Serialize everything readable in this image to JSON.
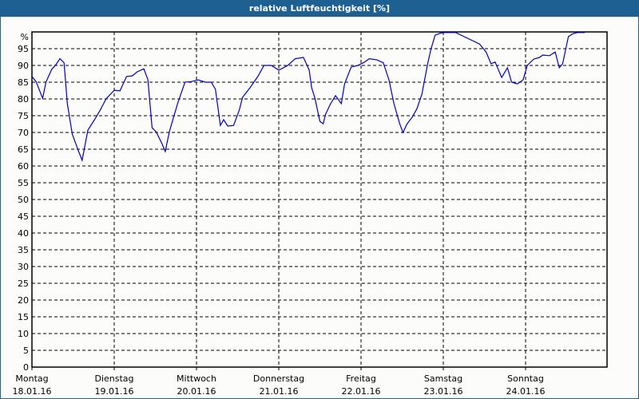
{
  "window": {
    "title": "relative Luftfeuchtigkeit [%]"
  },
  "colors": {
    "titlebar": "#1d6091",
    "title_text": "#ffffff",
    "background": "#fcfdfa",
    "line": "#0000c0",
    "grid": "#000000"
  },
  "chart_data": {
    "type": "line",
    "title": "relative Luftfeuchtigkeit [%]",
    "xlabel": "",
    "ylabel": "%",
    "ylim": [
      0,
      100
    ],
    "grid": true,
    "legend": null,
    "y_ticks": [
      0,
      5,
      10,
      15,
      20,
      25,
      30,
      35,
      40,
      45,
      50,
      55,
      60,
      65,
      70,
      75,
      80,
      85,
      90,
      95
    ],
    "y_unit_label": "%",
    "x_ticks": [
      {
        "day": "Montag",
        "date": "18.01.16"
      },
      {
        "day": "Dienstag",
        "date": "19.01.16"
      },
      {
        "day": "Mittwoch",
        "date": "20.01.16"
      },
      {
        "day": "Donnerstag",
        "date": "21.01.16"
      },
      {
        "day": "Freitag",
        "date": "22.01.16"
      },
      {
        "day": "Samstag",
        "date": "23.01.16"
      },
      {
        "day": "Sonntag",
        "date": "24.01.16"
      }
    ],
    "x_unit": "days since Montag 18.01.16 00:00",
    "xlim": [
      0,
      7
    ],
    "series": [
      {
        "name": "relative Luftfeuchtigkeit",
        "x": [
          0.0,
          0.05,
          0.13,
          0.17,
          0.24,
          0.29,
          0.34,
          0.39,
          0.43,
          0.49,
          0.56,
          0.61,
          0.68,
          0.76,
          0.83,
          0.9,
          1.0,
          1.07,
          1.15,
          1.22,
          1.28,
          1.36,
          1.41,
          1.46,
          1.51,
          1.58,
          1.62,
          1.67,
          1.77,
          1.86,
          1.94,
          2.02,
          2.11,
          2.18,
          2.23,
          2.29,
          2.33,
          2.38,
          2.45,
          2.52,
          2.56,
          2.65,
          2.75,
          2.82,
          2.91,
          3.0,
          3.11,
          3.2,
          3.3,
          3.37,
          3.4,
          3.44,
          3.5,
          3.54,
          3.57,
          3.63,
          3.69,
          3.76,
          3.8,
          3.88,
          3.96,
          4.03,
          4.1,
          4.19,
          4.27,
          4.34,
          4.4,
          4.47,
          4.51,
          4.56,
          4.62,
          4.68,
          4.74,
          4.81,
          4.85,
          4.9,
          4.95,
          5.0,
          5.15,
          5.44,
          5.52,
          5.58,
          5.63,
          5.71,
          5.78,
          5.83,
          5.9,
          5.97,
          6.02,
          6.1,
          6.17,
          6.21,
          6.29,
          6.36,
          6.41,
          6.45,
          6.52,
          6.58,
          6.63,
          6.72
        ],
        "values": [
          86.7,
          85.2,
          80.2,
          85.0,
          88.8,
          90.2,
          92.0,
          90.8,
          78.6,
          69.5,
          64.8,
          61.7,
          70.7,
          73.8,
          76.7,
          80.0,
          82.6,
          82.4,
          86.7,
          86.9,
          88.1,
          89.0,
          85.7,
          71.4,
          70.2,
          66.7,
          64.3,
          70.2,
          78.6,
          85.0,
          85.2,
          85.7,
          85.0,
          85.0,
          82.9,
          72.1,
          73.8,
          71.9,
          72.1,
          76.7,
          80.5,
          83.3,
          86.9,
          90.0,
          90.0,
          88.6,
          90.0,
          92.0,
          92.4,
          88.6,
          83.3,
          80.2,
          73.3,
          72.6,
          75.5,
          78.6,
          81.0,
          78.6,
          84.5,
          89.5,
          90.0,
          90.8,
          92.0,
          91.7,
          90.8,
          85.7,
          78.6,
          72.6,
          70.0,
          72.6,
          74.5,
          77.1,
          81.4,
          90.5,
          94.8,
          99.0,
          99.5,
          99.8,
          99.8,
          96.4,
          94.0,
          90.5,
          91.0,
          86.4,
          89.3,
          85.0,
          84.5,
          85.7,
          90.0,
          91.9,
          92.4,
          93.1,
          92.9,
          94.0,
          89.3,
          90.5,
          98.6,
          99.5,
          99.8,
          99.8
        ]
      }
    ]
  }
}
